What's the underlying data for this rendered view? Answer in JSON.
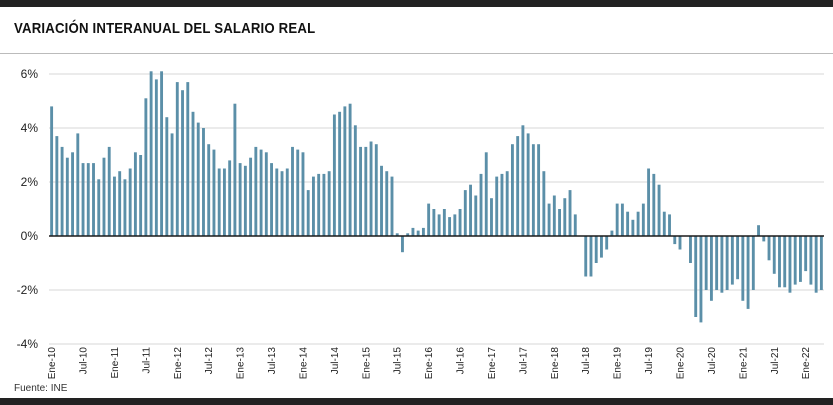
{
  "title": "VARIACIÓN INTERANUAL DEL SALARIO REAL",
  "source": "Fuente: INE",
  "chart_data": {
    "type": "bar",
    "title": "VARIACIÓN INTERANUAL DEL SALARIO REAL",
    "ylim": [
      -4,
      6.5
    ],
    "yticks": [
      -4,
      -2,
      0,
      2,
      4,
      6
    ],
    "ytick_labels": [
      "-4%",
      "-2%",
      "0%",
      "2%",
      "4%",
      "6%"
    ],
    "grid": true,
    "bar_color": "#5b8fa8",
    "xtick_labels": [
      {
        "label": "Ene-10",
        "index": 0
      },
      {
        "label": "Jul-10",
        "index": 6
      },
      {
        "label": "Ene-11",
        "index": 12
      },
      {
        "label": "Jul-11",
        "index": 18
      },
      {
        "label": "Ene-12",
        "index": 24
      },
      {
        "label": "Jul-12",
        "index": 30
      },
      {
        "label": "Ene-13",
        "index": 36
      },
      {
        "label": "Jul-13",
        "index": 42
      },
      {
        "label": "Ene-14",
        "index": 48
      },
      {
        "label": "Jul-14",
        "index": 54
      },
      {
        "label": "Ene-15",
        "index": 60
      },
      {
        "label": "Jul-15",
        "index": 66
      },
      {
        "label": "Ene-16",
        "index": 72
      },
      {
        "label": "Jul-16",
        "index": 78
      },
      {
        "label": "Ene-17",
        "index": 84
      },
      {
        "label": "Jul-17",
        "index": 90
      },
      {
        "label": "Ene-18",
        "index": 96
      },
      {
        "label": "Jul-18",
        "index": 102
      },
      {
        "label": "Ene-19",
        "index": 108
      },
      {
        "label": "Jul-19",
        "index": 114
      },
      {
        "label": "Ene-20",
        "index": 120
      },
      {
        "label": "Jul-20",
        "index": 126
      },
      {
        "label": "Ene-21",
        "index": 132
      },
      {
        "label": "Jul-21",
        "index": 138
      },
      {
        "label": "Ene-22",
        "index": 144
      }
    ],
    "values": [
      4.8,
      3.7,
      3.3,
      2.9,
      3.1,
      3.8,
      2.7,
      2.7,
      2.7,
      2.1,
      2.9,
      3.3,
      2.2,
      2.4,
      2.1,
      2.5,
      3.1,
      3.0,
      5.1,
      6.1,
      5.8,
      6.1,
      4.4,
      3.8,
      5.7,
      5.4,
      5.7,
      4.6,
      4.2,
      4.0,
      3.4,
      3.2,
      2.5,
      2.5,
      2.8,
      4.9,
      2.7,
      2.6,
      2.9,
      3.3,
      3.2,
      3.1,
      2.7,
      2.5,
      2.4,
      2.5,
      3.3,
      3.2,
      3.1,
      1.7,
      2.2,
      2.3,
      2.3,
      2.4,
      4.5,
      4.6,
      4.8,
      4.9,
      4.1,
      3.3,
      3.3,
      3.5,
      3.4,
      2.6,
      2.4,
      2.2,
      0.1,
      -0.6,
      0.1,
      0.3,
      0.2,
      0.3,
      1.2,
      1.0,
      0.8,
      1.0,
      0.7,
      0.8,
      1.0,
      1.7,
      1.9,
      1.5,
      2.3,
      3.1,
      1.4,
      2.2,
      2.3,
      2.4,
      3.4,
      3.7,
      4.1,
      3.8,
      3.4,
      3.4,
      2.4,
      1.2,
      1.5,
      1.0,
      1.4,
      1.7,
      0.8,
      0.0,
      -1.5,
      -1.5,
      -1.0,
      -0.8,
      -0.5,
      0.2,
      1.2,
      1.2,
      0.9,
      0.6,
      0.9,
      1.2,
      2.5,
      2.3,
      1.9,
      0.9,
      0.8,
      -0.3,
      -0.5,
      0.0,
      -1.0,
      -3.0,
      -3.2,
      -2.0,
      -2.4,
      -2.0,
      -2.1,
      -2.0,
      -1.8,
      -1.6,
      -2.4,
      -2.7,
      -2.0,
      0.4,
      -0.2,
      -0.9,
      -1.4,
      -1.9,
      -1.9,
      -2.1,
      -1.8,
      -1.7,
      -1.3,
      -1.8,
      -2.1,
      -2.0
    ]
  }
}
